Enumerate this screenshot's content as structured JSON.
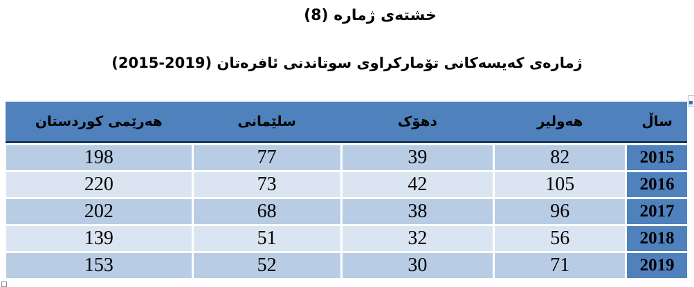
{
  "page": {
    "title": "خشتەی ژماره (8)",
    "subtitle": "ژمارەی کەیسەکانی تۆمارکراوی سوتاندنی ئافرەتان (2019-2015)"
  },
  "table": {
    "columns": {
      "year": "ساڵ",
      "erbil": "هەولیر",
      "duhok": "دهۆک",
      "sulaymaniyah": "سلێمانی",
      "kurdistan_region": "هەرێمی کوردستان"
    },
    "rows": [
      {
        "year": "2015",
        "erbil": "82",
        "duhok": "39",
        "sulaymaniyah": "77",
        "kurdistan_region": "198"
      },
      {
        "year": "2016",
        "erbil": "105",
        "duhok": "42",
        "sulaymaniyah": "73",
        "kurdistan_region": "220"
      },
      {
        "year": "2017",
        "erbil": "96",
        "duhok": "38",
        "sulaymaniyah": "68",
        "kurdistan_region": "202"
      },
      {
        "year": "2018",
        "erbil": "56",
        "duhok": "32",
        "sulaymaniyah": "51",
        "kurdistan_region": "139"
      },
      {
        "year": "2019",
        "erbil": "71",
        "duhok": "30",
        "sulaymaniyah": "52",
        "kurdistan_region": "153"
      }
    ]
  },
  "colors": {
    "header_blue": "#4F81BD",
    "band_dark": "#B8CCE4",
    "band_light": "#DBE5F1",
    "header_rule": "#17365D"
  }
}
